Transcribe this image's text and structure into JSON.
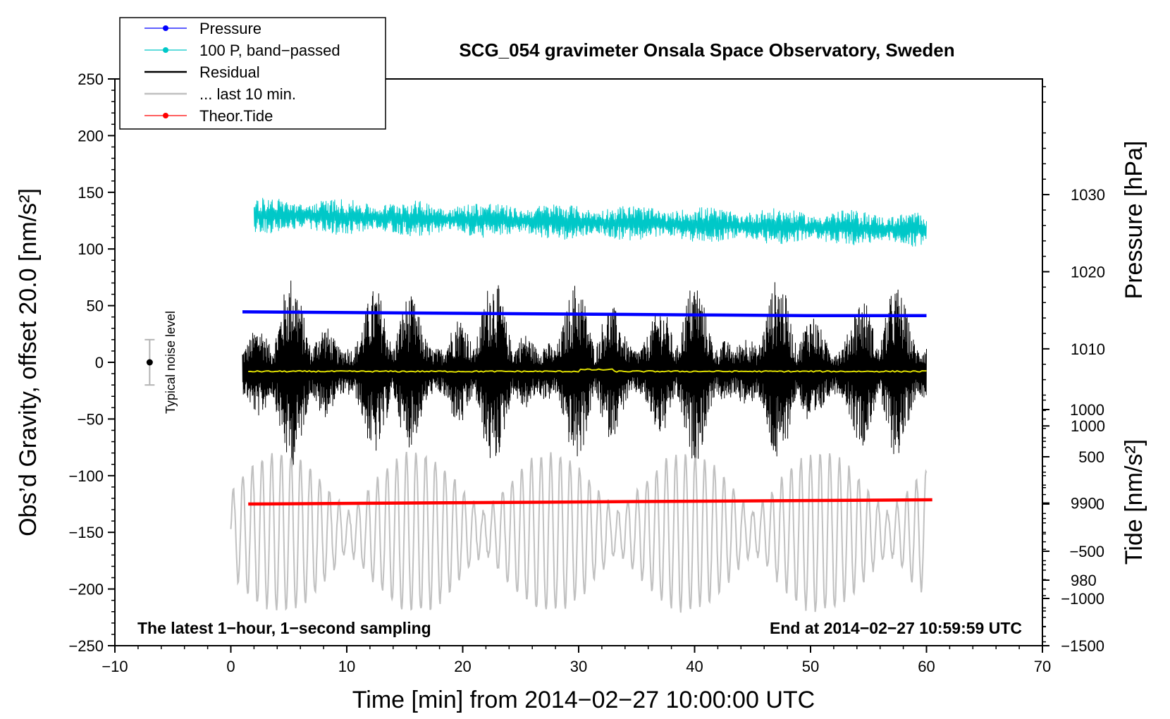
{
  "chart_data": {
    "type": "line",
    "title": "SCG_054 gravimeter Onsala Space Observatory, Sweden",
    "xlabel": "Time [min] from 2014−02−27 10:00:00 UTC",
    "ylabel_left": "Obs’d Gravity, offset 20.0 [nm/s²]",
    "ylabel_right_pressure": "Pressure [hPa]",
    "ylabel_right_tide": "Tide [nm/s²]",
    "xlim": [
      -10,
      70
    ],
    "ylim": [
      -250,
      250
    ],
    "pressure_ylim": [
      971.5,
      1045
    ],
    "tide_ylim": [
      -1500,
      4500
    ],
    "x_ticks": [
      -10,
      0,
      10,
      20,
      30,
      40,
      50,
      60,
      70
    ],
    "x_tick_labels": [
      "−10",
      "0",
      "10",
      "20",
      "30",
      "40",
      "50",
      "60",
      "70"
    ],
    "y_ticks": [
      250,
      200,
      150,
      100,
      50,
      0,
      -50,
      -100,
      -150,
      -200,
      -250
    ],
    "y_tick_labels": [
      "250",
      "200",
      "150",
      "100",
      "50",
      "0",
      "−50",
      "−100",
      "−150",
      "−200",
      "−250"
    ],
    "pressure_ticks": [
      1030,
      1020,
      1010,
      1000,
      990,
      980
    ],
    "pressure_tick_labels": [
      "1030",
      "1020",
      "1010",
      "1000",
      "990",
      "980"
    ],
    "tide_ticks": [
      1000,
      500,
      0,
      -500,
      -1000,
      -1500
    ],
    "tide_tick_labels": [
      "1000",
      "500",
      "0",
      "−500",
      "−1000",
      "−1500"
    ],
    "legend": [
      {
        "name": "Pressure",
        "color": "#0000ff",
        "marker": true
      },
      {
        "name": "100 P, band−passed",
        "color": "#00c8c8",
        "marker": true
      },
      {
        "name": "Residual",
        "color": "#000000",
        "marker": false
      },
      {
        "name": "... last 10 min.",
        "color": "#c0c0c0",
        "marker": false
      },
      {
        "name": "Theor.Tide",
        "color": "#ff0000",
        "marker": true
      }
    ],
    "legend_position": "top-left",
    "annotations": {
      "bottom_left": "The latest 1−hour, 1−second sampling",
      "bottom_right": "End at 2014−02−27 10:59:59 UTC",
      "noise_label": "Typical noise level"
    },
    "noise_bar": {
      "x": -7,
      "center": 0,
      "half_range": 20
    },
    "series": [
      {
        "name": "Pressure",
        "color": "#0000ff",
        "axis": "pressure",
        "x": [
          1,
          10,
          20,
          30,
          40,
          50,
          60
        ],
        "values": [
          1014.8,
          1014.7,
          1014.6,
          1014.5,
          1014.4,
          1014.3,
          1014.3
        ]
      },
      {
        "name": "100 P, band−passed",
        "color": "#00c8c8",
        "axis": "left",
        "x_range": [
          2,
          60
        ],
        "mean_start": 130,
        "mean_end": 117,
        "amplitude": 16
      },
      {
        "name": "Residual",
        "color": "#000000",
        "axis": "left",
        "x_range": [
          1,
          60
        ],
        "mean": -8,
        "amplitude_min": 20,
        "amplitude_max": 85
      },
      {
        "name": "Residual mean",
        "color": "#dddd00",
        "axis": "left",
        "x_range": [
          1.5,
          60
        ],
        "values_start": -8,
        "values_end": -8
      },
      {
        "name": "... last 10 min.",
        "color": "#c0c0c0",
        "axis": "left",
        "x_range": [
          0,
          60
        ],
        "mean": -150,
        "amplitude_min": 18,
        "amplitude_max": 70
      },
      {
        "name": "Theor.Tide",
        "color": "#ff0000",
        "axis": "tide",
        "x": [
          1.5,
          60.5
        ],
        "values": [
          0,
          45
        ]
      }
    ]
  }
}
